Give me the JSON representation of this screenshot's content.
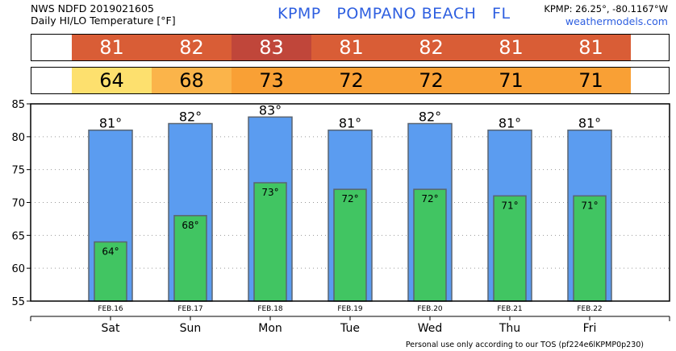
{
  "header": {
    "line1": "NWS NDFD 2019021605",
    "line2": "Daily HI/LO Temperature [°F]",
    "title": "KPMP   POMPANO BEACH   FL",
    "coords": "KPMP: 26.25°, -80.1167°W",
    "site": "weathermodels.com"
  },
  "colors": {
    "hi_cells": [
      "#d95d36",
      "#d95d36",
      "#c0463a",
      "#d95d36",
      "#d95d36",
      "#d95d36",
      "#d95d36"
    ],
    "lo_cells": [
      "#fde06e",
      "#fbb44a",
      "#f9a035",
      "#f9a035",
      "#f9a035",
      "#f9a035",
      "#f9a035"
    ],
    "hi_bar": "#5b9cf0",
    "lo_bar": "#41c562"
  },
  "chart_data": {
    "type": "bar",
    "categories": [
      "Sat",
      "Sun",
      "Mon",
      "Tue",
      "Wed",
      "Thu",
      "Fri"
    ],
    "dates": [
      "FEB.16",
      "FEB.17",
      "FEB.18",
      "FEB.19",
      "FEB.20",
      "FEB.21",
      "FEB.22"
    ],
    "series": [
      {
        "name": "",
        "values": [
          81,
          82,
          83,
          81,
          82,
          81,
          81
        ],
        "labels": [
          "81°",
          "82°",
          "83°",
          "81°",
          "82°",
          "81°",
          "81°"
        ]
      },
      {
        "name": "",
        "values": [
          64,
          68,
          73,
          72,
          72,
          71,
          71
        ],
        "labels": [
          "64°",
          "68°",
          "73°",
          "72°",
          "72°",
          "71°",
          "71°"
        ]
      }
    ],
    "hi_strip": [
      "81",
      "82",
      "83",
      "81",
      "82",
      "81",
      "81"
    ],
    "lo_strip": [
      "64",
      "68",
      "73",
      "72",
      "72",
      "71",
      "71"
    ],
    "ylim": [
      55,
      85
    ],
    "yticks": [
      55,
      60,
      65,
      70,
      75,
      80,
      85
    ],
    "grid": true
  },
  "footer": "Personal use only according to our TOS (pf224e6lKPMP0p230)"
}
